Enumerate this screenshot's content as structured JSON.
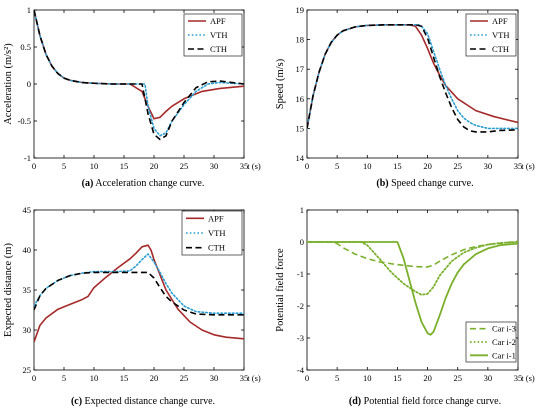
{
  "chart_data": [
    {
      "type": "line",
      "id": "a",
      "caption_tag": "(a)",
      "caption_text": " Acceleration change curve.",
      "xlabel": "t (s)",
      "ylabel": "Acceleration (m/s²)",
      "xlim": [
        0,
        35
      ],
      "ylim": [
        -1,
        1
      ],
      "xticks": [
        0,
        5,
        10,
        15,
        20,
        25,
        30,
        35
      ],
      "yticks": [
        -1,
        -0.5,
        0,
        0.5,
        1
      ],
      "ytick_labels": [
        "-1",
        "-0.5",
        "0",
        "0.5",
        "1"
      ],
      "grid": false,
      "legend_position": "top-right",
      "series": [
        {
          "name": "APF",
          "color": "#a52a2a",
          "style": "solid",
          "x": [
            0,
            1,
            2,
            3,
            4,
            5,
            6,
            8,
            10,
            13,
            16,
            18,
            19,
            20,
            21,
            22,
            23,
            25,
            28,
            31,
            35
          ],
          "y": [
            1.0,
            0.65,
            0.4,
            0.24,
            0.14,
            0.08,
            0.05,
            0.02,
            0.01,
            0.0,
            0.0,
            -0.1,
            -0.3,
            -0.47,
            -0.45,
            -0.37,
            -0.3,
            -0.2,
            -0.1,
            -0.06,
            -0.03
          ]
        },
        {
          "name": "VTH",
          "color": "#2a9dd1",
          "style": "dotted",
          "x": [
            0,
            1,
            2,
            3,
            4,
            5,
            6,
            8,
            10,
            13,
            16,
            18.5,
            19,
            20,
            21,
            22,
            23,
            25,
            27,
            29,
            31,
            35
          ],
          "y": [
            1.0,
            0.65,
            0.4,
            0.24,
            0.14,
            0.08,
            0.05,
            0.02,
            0.01,
            0.0,
            0.0,
            0.0,
            -0.3,
            -0.6,
            -0.7,
            -0.66,
            -0.5,
            -0.28,
            -0.1,
            0.0,
            0.02,
            0.0
          ]
        },
        {
          "name": "CTH",
          "color": "#000000",
          "style": "dashed",
          "x": [
            0,
            1,
            2,
            3,
            4,
            5,
            6,
            8,
            10,
            13,
            16,
            18,
            19,
            20,
            21,
            22,
            23,
            25,
            27,
            29,
            31,
            35
          ],
          "y": [
            1.0,
            0.65,
            0.4,
            0.24,
            0.14,
            0.08,
            0.05,
            0.02,
            0.01,
            0.0,
            0.0,
            0.0,
            -0.4,
            -0.68,
            -0.75,
            -0.7,
            -0.5,
            -0.25,
            -0.05,
            0.03,
            0.04,
            0.0
          ]
        }
      ]
    },
    {
      "type": "line",
      "id": "b",
      "caption_tag": "(b)",
      "caption_text": " Speed change curve.",
      "xlabel": "t (s)",
      "ylabel": "Speed (m/s)",
      "xlim": [
        0,
        35
      ],
      "ylim": [
        14,
        19
      ],
      "xticks": [
        0,
        5,
        10,
        15,
        20,
        25,
        30,
        35
      ],
      "yticks": [
        14,
        15,
        16,
        17,
        18,
        19
      ],
      "ytick_labels": [
        "14",
        "15",
        "16",
        "17",
        "18",
        "19"
      ],
      "grid": false,
      "legend_position": "top-right",
      "series": [
        {
          "name": "APF",
          "color": "#a52a2a",
          "style": "solid",
          "x": [
            0,
            1,
            2,
            3,
            4,
            5,
            6,
            8,
            10,
            13,
            17,
            18,
            19,
            20,
            21,
            22,
            23,
            25,
            28,
            31,
            35
          ],
          "y": [
            15.0,
            16.1,
            16.9,
            17.5,
            17.9,
            18.15,
            18.3,
            18.43,
            18.48,
            18.5,
            18.5,
            18.45,
            18.15,
            17.7,
            17.2,
            16.8,
            16.45,
            16.0,
            15.6,
            15.4,
            15.2
          ]
        },
        {
          "name": "VTH",
          "color": "#2a9dd1",
          "style": "dotted",
          "x": [
            0,
            1,
            2,
            3,
            4,
            5,
            6,
            8,
            10,
            13,
            17,
            18.5,
            19,
            20,
            21,
            22,
            23,
            24,
            25,
            26,
            27,
            28,
            30,
            35
          ],
          "y": [
            15.0,
            16.1,
            16.9,
            17.5,
            17.9,
            18.15,
            18.3,
            18.43,
            18.48,
            18.5,
            18.5,
            18.5,
            18.45,
            18.2,
            17.6,
            17.0,
            16.45,
            16.0,
            15.6,
            15.35,
            15.2,
            15.1,
            15.0,
            15.0
          ]
        },
        {
          "name": "CTH",
          "color": "#000000",
          "style": "dashed",
          "x": [
            0,
            1,
            2,
            3,
            4,
            5,
            6,
            8,
            10,
            13,
            17,
            18,
            19,
            20,
            21,
            22,
            23,
            24,
            25,
            26,
            27,
            28,
            30,
            32,
            35
          ],
          "y": [
            15.0,
            16.1,
            16.9,
            17.5,
            17.9,
            18.15,
            18.3,
            18.43,
            18.48,
            18.5,
            18.5,
            18.5,
            18.45,
            18.05,
            17.4,
            16.75,
            16.2,
            15.7,
            15.3,
            15.05,
            14.92,
            14.88,
            14.88,
            14.93,
            14.95
          ]
        }
      ]
    },
    {
      "type": "line",
      "id": "c",
      "caption_tag": "(c)",
      "caption_text": " Expected distance change curve.",
      "xlabel": "t (s)",
      "ylabel": "Expected distance (m)",
      "xlim": [
        0,
        35
      ],
      "ylim": [
        25,
        45
      ],
      "xticks": [
        0,
        5,
        10,
        15,
        20,
        25,
        30,
        35
      ],
      "yticks": [
        25,
        30,
        35,
        40,
        45
      ],
      "ytick_labels": [
        "25",
        "30",
        "35",
        "40",
        "45"
      ],
      "grid": false,
      "legend_position": "top-right",
      "series": [
        {
          "name": "APF",
          "color": "#a52a2a",
          "style": "solid",
          "x": [
            0,
            1,
            2,
            4,
            6,
            8,
            9,
            10,
            12,
            14,
            16,
            17,
            18,
            19,
            19.5,
            20,
            21,
            22,
            24,
            26,
            28,
            30,
            32,
            35
          ],
          "y": [
            28.5,
            30.6,
            31.5,
            32.6,
            33.2,
            33.8,
            34.2,
            35.3,
            36.6,
            37.8,
            38.9,
            39.6,
            40.4,
            40.6,
            40.0,
            38.8,
            36.9,
            35.0,
            32.6,
            31.0,
            30.0,
            29.4,
            29.1,
            28.9
          ]
        },
        {
          "name": "VTH",
          "color": "#2a9dd1",
          "style": "dotted",
          "x": [
            0,
            1,
            2,
            4,
            6,
            8,
            10,
            12,
            14,
            16,
            17,
            18,
            19,
            20,
            21,
            22,
            23,
            25,
            27,
            30,
            35
          ],
          "y": [
            33.0,
            34.3,
            35.2,
            36.2,
            36.8,
            37.1,
            37.3,
            37.3,
            37.3,
            37.4,
            38.0,
            38.8,
            39.5,
            38.5,
            37.2,
            35.8,
            34.6,
            33.0,
            32.3,
            32.1,
            32.1
          ]
        },
        {
          "name": "CTH",
          "color": "#000000",
          "style": "dashed",
          "x": [
            0,
            1,
            2,
            4,
            6,
            8,
            10,
            12,
            14,
            16,
            18,
            19,
            20,
            21,
            22,
            23,
            25,
            27,
            30,
            35
          ],
          "y": [
            32.5,
            34.3,
            35.2,
            36.2,
            36.8,
            37.1,
            37.2,
            37.2,
            37.2,
            37.2,
            37.2,
            37.2,
            36.5,
            35.3,
            34.2,
            33.5,
            32.5,
            32.0,
            31.9,
            31.9
          ]
        }
      ]
    },
    {
      "type": "line",
      "id": "d",
      "caption_tag": "(d)",
      "caption_text": " Potential field force change curve.",
      "xlabel": "t (s)",
      "ylabel": "Potential field force",
      "xlim": [
        0,
        35
      ],
      "ylim": [
        -4,
        1
      ],
      "xticks": [
        0,
        5,
        10,
        15,
        20,
        25,
        30,
        35
      ],
      "yticks": [
        -4,
        -3,
        -2,
        -1,
        0,
        1
      ],
      "ytick_labels": [
        "-4",
        "-3",
        "-2",
        "-1",
        "0",
        "1"
      ],
      "grid": false,
      "legend_position": "bottom-right",
      "series": [
        {
          "name": "Car i-3",
          "color": "#7ab02c",
          "style": "dashed",
          "width": 1.6,
          "x": [
            0,
            3,
            4,
            5,
            6,
            8,
            10,
            12,
            14,
            16,
            18,
            20,
            21,
            22,
            24,
            26,
            28,
            30,
            32,
            35
          ],
          "y": [
            0,
            0,
            0,
            -0.05,
            -0.18,
            -0.38,
            -0.52,
            -0.62,
            -0.68,
            -0.73,
            -0.77,
            -0.78,
            -0.72,
            -0.6,
            -0.4,
            -0.24,
            -0.14,
            -0.08,
            -0.04,
            0.02
          ]
        },
        {
          "name": "Car i-2",
          "color": "#7ab02c",
          "style": "dotted",
          "width": 1.8,
          "x": [
            0,
            8,
            9,
            10,
            12,
            14,
            16,
            18,
            19,
            20,
            21,
            22,
            24,
            26,
            28,
            30,
            32,
            35
          ],
          "y": [
            0,
            0,
            0,
            -0.1,
            -0.52,
            -0.95,
            -1.3,
            -1.55,
            -1.65,
            -1.62,
            -1.4,
            -1.05,
            -0.6,
            -0.33,
            -0.18,
            -0.08,
            -0.03,
            0.0
          ]
        },
        {
          "name": "Car i-1",
          "color": "#7ab02c",
          "style": "solid",
          "width": 1.8,
          "x": [
            0,
            14,
            15,
            16,
            17,
            18,
            19,
            20,
            20.5,
            21,
            22,
            23,
            24,
            25,
            26,
            28,
            30,
            32,
            35
          ],
          "y": [
            0,
            0,
            0,
            -0.5,
            -1.2,
            -1.9,
            -2.5,
            -2.85,
            -2.9,
            -2.8,
            -2.3,
            -1.75,
            -1.3,
            -0.95,
            -0.7,
            -0.38,
            -0.2,
            -0.1,
            -0.05
          ]
        }
      ]
    }
  ]
}
